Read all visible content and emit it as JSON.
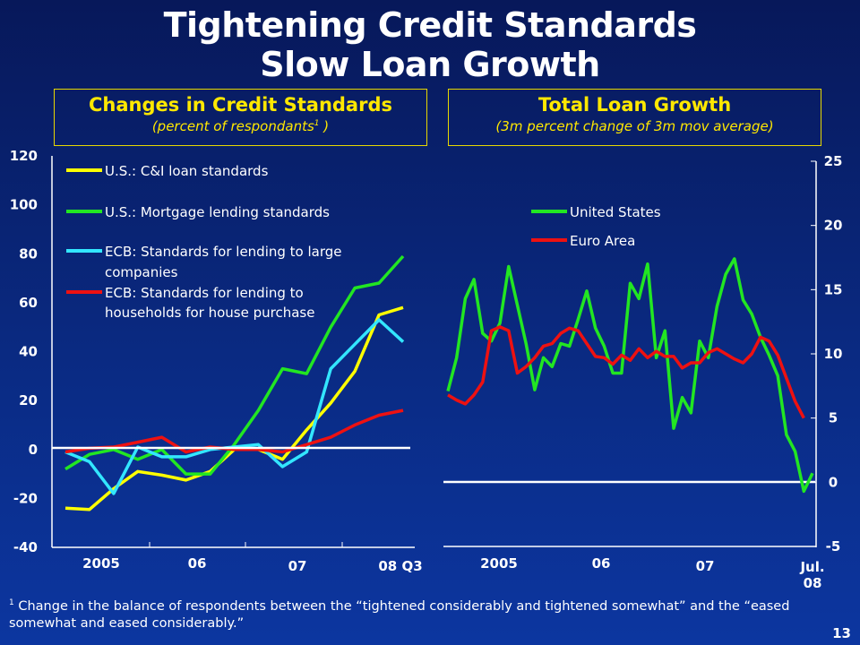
{
  "title_line1": "Tightening Credit Standards",
  "title_line2": "Slow Loan Growth",
  "footnote_mark": "1",
  "footnote": "Change in the balance of respondents between the “tightened considerably and tightened somewhat” and the “eased somewhat and eased considerably.”",
  "page_number": "13",
  "chart_data": [
    {
      "type": "line",
      "title": "Changes in Credit Standards",
      "subtitle": "(percent of respondants",
      "subtitle_sup": "1",
      "subtitle_end": " )",
      "frequency": "quarterly, 2005Q1-2008Q3",
      "ylim": [
        -40,
        120
      ],
      "yticks": [
        "120",
        "100",
        "80",
        "60",
        "40",
        "20",
        "0",
        "-20",
        "-40"
      ],
      "xticks": [
        "2005",
        "06",
        "07",
        "08 Q3"
      ],
      "legend_placement": "top-left",
      "series": [
        {
          "name": "U.S.: C&I loan standards",
          "color": "#ffff00",
          "values": [
            -24,
            -24.5,
            -16,
            -9,
            -10.5,
            -12.5,
            -9,
            0,
            0,
            -4,
            8,
            19,
            32,
            55,
            58
          ]
        },
        {
          "name": "U.S.: Mortgage lending standards",
          "color": "#22e622",
          "values": [
            -8,
            -2,
            0,
            -4,
            0,
            -10,
            -10,
            2,
            16,
            33,
            31,
            50,
            66,
            68,
            79
          ]
        },
        {
          "name_line1": "ECB: Standards for lending to large",
          "name_line2": "companies",
          "color": "#33e6ff",
          "values": [
            -1,
            -5,
            -18,
            1,
            -3,
            -3,
            0,
            1,
            2,
            -7,
            -1,
            33,
            43,
            53,
            44
          ]
        },
        {
          "name_line1": "ECB: Standards for lending to",
          "name_line2": "households for house purchase",
          "color": "#ee1111",
          "values": [
            -1,
            0.5,
            1,
            3,
            5,
            -1,
            1,
            0,
            0,
            -1,
            2,
            5,
            10,
            14,
            16
          ]
        }
      ]
    },
    {
      "type": "line",
      "title": "Total Loan Growth",
      "subtitle": "(3m percent change of 3m mov average)",
      "frequency": "monthly, Jan 2005-Jul 2008",
      "ylim": [
        -5,
        25
      ],
      "yticks": [
        "25",
        "20",
        "15",
        "10",
        "5",
        "0",
        "-5"
      ],
      "xticks": [
        "2005",
        "06",
        "07"
      ],
      "xtick_last_1": "Jul.",
      "xtick_last_2": "08",
      "legend_placement": "top-center",
      "series": [
        {
          "name": "United States",
          "color": "#22e622",
          "values": [
            7.1,
            9.7,
            14.3,
            15.8,
            11.6,
            11,
            12.4,
            16.8,
            13.8,
            10.8,
            7.2,
            9.7,
            9,
            10.8,
            10.6,
            12.7,
            14.9,
            12,
            10.6,
            8.5,
            8.5,
            15.5,
            14.3,
            17,
            9.7,
            11.8,
            4.2,
            6.6,
            5.4,
            11,
            9.7,
            13.7,
            16.2,
            17.4,
            14.2,
            13.1,
            11.3,
            9.9,
            8.3,
            3.7,
            2.4,
            -0.7,
            0.7
          ]
        },
        {
          "name": "Euro Area",
          "color": "#ee1111",
          "values": [
            6.8,
            6.4,
            6.1,
            6.8,
            7.8,
            11.8,
            12.1,
            11.8,
            8.5,
            9,
            9.7,
            10.6,
            10.8,
            11.6,
            12,
            11.8,
            10.8,
            9.8,
            9.7,
            9.2,
            9.9,
            9.5,
            10.4,
            9.7,
            10.2,
            9.8,
            9.8,
            8.9,
            9.3,
            9.3,
            10.1,
            10.4,
            10,
            9.6,
            9.3,
            10,
            11.3,
            11,
            9.9,
            8.1,
            6.3,
            5
          ]
        }
      ]
    }
  ]
}
